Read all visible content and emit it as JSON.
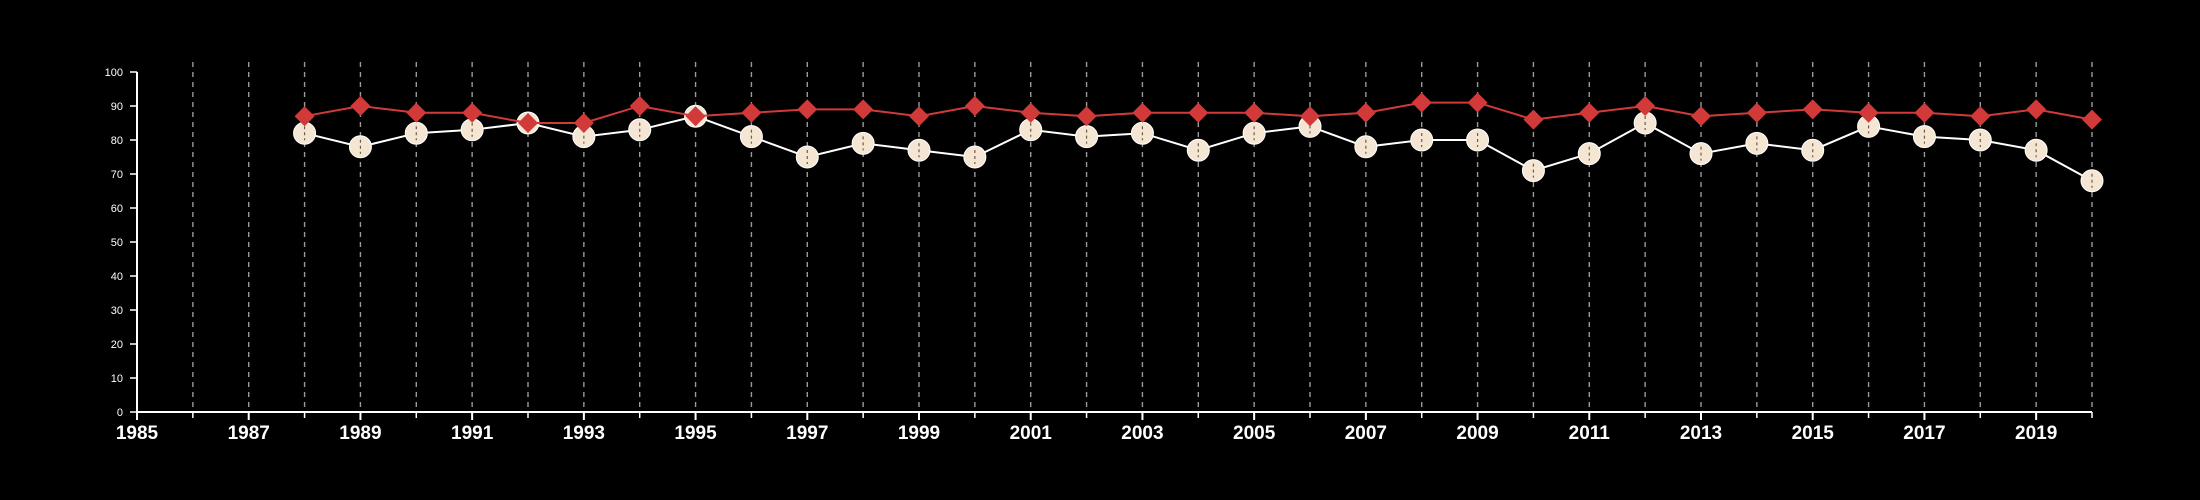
{
  "chart_data": {
    "type": "line",
    "title": "",
    "xlabel": "",
    "ylabel": "",
    "xlim": [
      1985,
      2020
    ],
    "ylim": [
      0,
      100
    ],
    "x_tick_labels": [
      "1985",
      "1987",
      "1989",
      "1991",
      "1993",
      "1995",
      "1997",
      "1999",
      "2001",
      "2003",
      "2005",
      "2007",
      "2009",
      "2011",
      "2013",
      "2015",
      "2017",
      "2019"
    ],
    "y_tick_labels": [
      "0",
      "10",
      "20",
      "30",
      "40",
      "50",
      "60",
      "70",
      "80",
      "90",
      "100"
    ],
    "grid": "vertical dashed lines at each year",
    "legend": "none",
    "x": [
      1988,
      1989,
      1990,
      1991,
      1992,
      1993,
      1994,
      1995,
      1996,
      1997,
      1998,
      1999,
      2000,
      2001,
      2002,
      2003,
      2004,
      2005,
      2006,
      2007,
      2008,
      2009,
      2010,
      2011,
      2012,
      2013,
      2014,
      2015,
      2016,
      2017,
      2018,
      2019,
      2020
    ],
    "series": [
      {
        "marker": "diamond",
        "color": "#d23a3a",
        "values": [
          87,
          90,
          88,
          88,
          85,
          85,
          90,
          87,
          88,
          89,
          89,
          87,
          90,
          88,
          87,
          88,
          88,
          88,
          87,
          88,
          91,
          91,
          86,
          88,
          90,
          87,
          88,
          89,
          88,
          88,
          87,
          89,
          86
        ]
      },
      {
        "marker": "circle",
        "color": "#f5e6d3",
        "line_color": "#ffffff",
        "values": [
          82,
          78,
          82,
          83,
          85,
          81,
          83,
          87,
          81,
          75,
          79,
          77,
          75,
          83,
          81,
          82,
          77,
          82,
          84,
          78,
          80,
          80,
          71,
          76,
          85,
          76,
          79,
          77,
          84,
          81,
          80,
          77,
          68
        ]
      }
    ]
  }
}
